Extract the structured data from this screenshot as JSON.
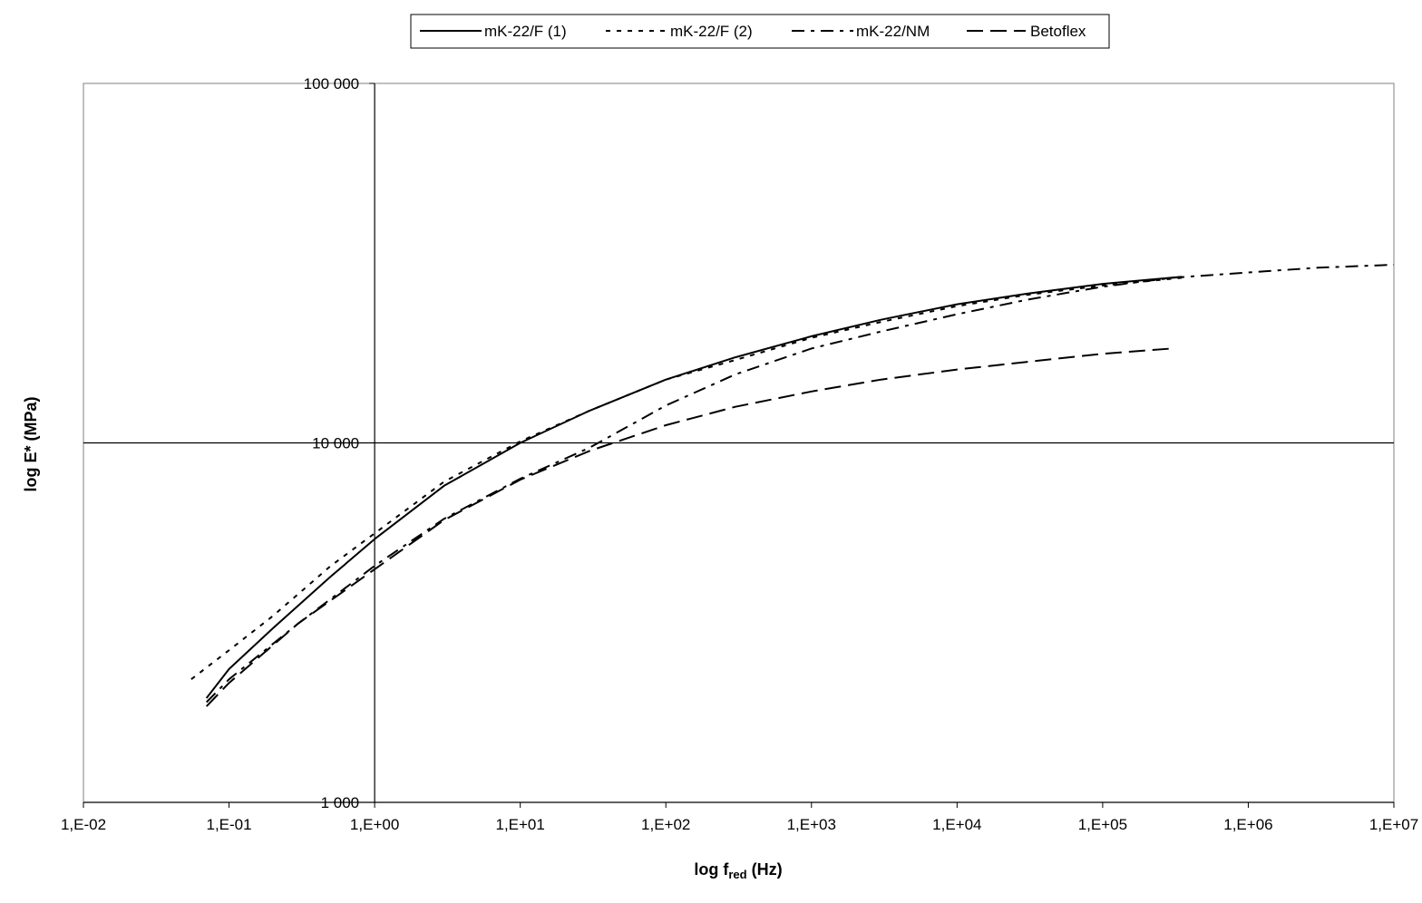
{
  "chart_data": {
    "type": "line",
    "title": "",
    "xlabel": {
      "main": "log f",
      "sub": "red",
      "unit": "(Hz)"
    },
    "ylabel": "log E* (MPa)",
    "x_scale": "log",
    "y_scale": "log",
    "xlim": [
      0.01,
      10000000
    ],
    "ylim": [
      1000,
      100000
    ],
    "x_ticks": [
      {
        "value": 0.01,
        "label": "1,E-02"
      },
      {
        "value": 0.1,
        "label": "1,E-01"
      },
      {
        "value": 1,
        "label": "1,E+00"
      },
      {
        "value": 10,
        "label": "1,E+01"
      },
      {
        "value": 100,
        "label": "1,E+02"
      },
      {
        "value": 1000,
        "label": "1,E+03"
      },
      {
        "value": 10000,
        "label": "1,E+04"
      },
      {
        "value": 100000,
        "label": "1,E+05"
      },
      {
        "value": 1000000,
        "label": "1,E+06"
      },
      {
        "value": 10000000,
        "label": "1,E+07"
      }
    ],
    "y_ticks": [
      {
        "value": 1000,
        "label": "1 000"
      },
      {
        "value": 10000,
        "label": "10 000"
      },
      {
        "value": 100000,
        "label": "100 000"
      }
    ],
    "gridlines": {
      "x_at": [
        1
      ],
      "y_at": [
        10000
      ]
    },
    "legend": "top-center",
    "series": [
      {
        "name": "mK-22/F (1)",
        "style": "solid",
        "color": "#000000",
        "points": [
          [
            0.07,
            1950
          ],
          [
            0.1,
            2350
          ],
          [
            0.2,
            3050
          ],
          [
            0.5,
            4250
          ],
          [
            1,
            5400
          ],
          [
            3,
            7600
          ],
          [
            10,
            10000
          ],
          [
            30,
            12300
          ],
          [
            100,
            15000
          ],
          [
            300,
            17300
          ],
          [
            1000,
            19800
          ],
          [
            3000,
            22000
          ],
          [
            10000,
            24300
          ],
          [
            30000,
            26000
          ],
          [
            100000,
            27700
          ],
          [
            350000,
            29000
          ]
        ]
      },
      {
        "name": "mK-22/F (2)",
        "style": "dotted",
        "color": "#000000",
        "points": [
          [
            0.055,
            2200
          ],
          [
            0.1,
            2650
          ],
          [
            0.2,
            3300
          ],
          [
            0.5,
            4550
          ],
          [
            1,
            5600
          ],
          [
            3,
            7800
          ],
          [
            10,
            10100
          ],
          [
            30,
            12300
          ],
          [
            100,
            15000
          ],
          [
            300,
            17000
          ],
          [
            1000,
            19600
          ],
          [
            3000,
            21700
          ],
          [
            10000,
            24000
          ],
          [
            30000,
            25800
          ],
          [
            100000,
            27400
          ],
          [
            350000,
            28800
          ]
        ]
      },
      {
        "name": "mK-22/NM",
        "style": "dash-dot",
        "color": "#000000",
        "points": [
          [
            0.07,
            1900
          ],
          [
            0.1,
            2200
          ],
          [
            0.3,
            3150
          ],
          [
            1,
            4550
          ],
          [
            3,
            6150
          ],
          [
            10,
            7950
          ],
          [
            30,
            9700
          ],
          [
            100,
            12700
          ],
          [
            300,
            15500
          ],
          [
            1000,
            18300
          ],
          [
            3000,
            20400
          ],
          [
            10000,
            22800
          ],
          [
            30000,
            25000
          ],
          [
            100000,
            27200
          ],
          [
            300000,
            28800
          ],
          [
            1000000,
            29800
          ],
          [
            3000000,
            30700
          ],
          [
            10000000,
            31300
          ]
        ]
      },
      {
        "name": "Betoflex",
        "style": "dashed",
        "color": "#000000",
        "points": [
          [
            0.07,
            1850
          ],
          [
            0.1,
            2150
          ],
          [
            0.3,
            3150
          ],
          [
            1,
            4450
          ],
          [
            3,
            6100
          ],
          [
            10,
            7900
          ],
          [
            30,
            9500
          ],
          [
            100,
            11200
          ],
          [
            300,
            12600
          ],
          [
            1000,
            13900
          ],
          [
            3000,
            15000
          ],
          [
            10000,
            16000
          ],
          [
            30000,
            16800
          ],
          [
            100000,
            17700
          ],
          [
            300000,
            18300
          ]
        ]
      }
    ]
  }
}
